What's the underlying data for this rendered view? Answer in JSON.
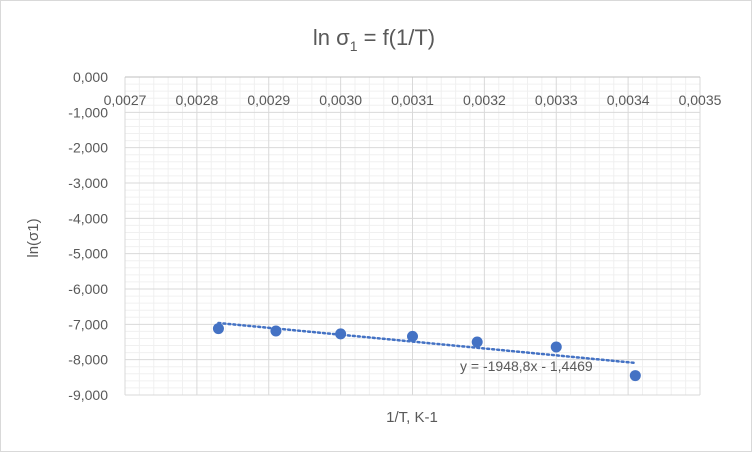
{
  "chart_data": {
    "type": "scatter",
    "title": "ln σ",
    "title_subscript": "1",
    "title_suffix": " = f(1/T)",
    "xlabel": "1/T, K-1",
    "ylabel": "ln(σ1)",
    "xlim": [
      0.0027,
      0.0035
    ],
    "ylim": [
      -9,
      0
    ],
    "x_ticks": [
      "0,0027",
      "0,0028",
      "0,0029",
      "0,0030",
      "0,0031",
      "0,0032",
      "0,0033",
      "0,0034",
      "0,0035"
    ],
    "y_ticks": [
      "0,000",
      "-1,000",
      "-2,000",
      "-3,000",
      "-4,000",
      "-5,000",
      "-6,000",
      "-7,000",
      "-8,000",
      "-9,000"
    ],
    "x_axis_position": "top",
    "grid": true,
    "legend": "none",
    "marker_color": "#4472C4",
    "series": [
      {
        "x": [
          0.00283,
          0.00291,
          0.003,
          0.0031,
          0.00319,
          0.0033,
          0.00341
        ],
        "y": [
          -7.12,
          -7.19,
          -7.27,
          -7.34,
          -7.5,
          -7.64,
          -8.45
        ]
      }
    ],
    "trendline": {
      "type": "linear",
      "style": "dotted",
      "slope": -1948.8,
      "intercept": -1.4469,
      "x_range": [
        0.00283,
        0.00341
      ],
      "equation_label": "y = -1948,8x - 1,4469"
    }
  }
}
